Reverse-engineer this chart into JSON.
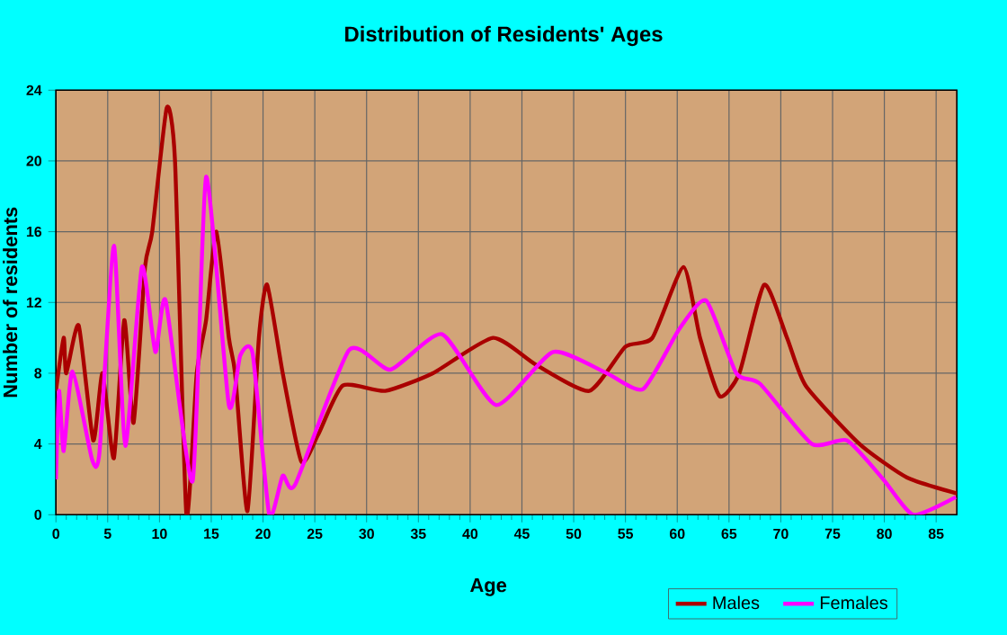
{
  "chart_data": {
    "type": "line",
    "title": "Distribution of Residents' Ages",
    "xlabel": "Age",
    "ylabel": "Number of residents",
    "xlim": [
      0,
      87
    ],
    "ylim": [
      0,
      24
    ],
    "xticks": [
      0,
      5,
      10,
      15,
      20,
      25,
      30,
      35,
      40,
      45,
      50,
      55,
      60,
      65,
      70,
      75,
      80,
      85
    ],
    "yticks": [
      0,
      4,
      8,
      12,
      16,
      20,
      24
    ],
    "grid": true,
    "legend": "bottom right",
    "marker": "none",
    "line_style": "solid",
    "series": [
      {
        "name": "Males",
        "color": "#aa0000",
        "x": [
          0,
          0.75,
          1.0,
          2.2,
          3.6,
          4.5,
          5.6,
          6.6,
          7.5,
          8.6,
          9.3,
          10.7,
          11.5,
          12.6,
          13.6,
          14.5,
          15.5,
          16.7,
          17.3,
          18.5,
          19.6,
          20.4,
          21.9,
          23.7,
          25.3,
          27.7,
          31.8,
          36.4,
          42.2,
          46.3,
          51.5,
          55,
          57.6,
          60.6,
          62.2,
          64.1,
          66,
          68.4,
          70.6,
          72.4,
          77.6,
          82.2,
          87
        ],
        "values": [
          7,
          10,
          8,
          10.7,
          4.2,
          8,
          3.2,
          11,
          5.2,
          14,
          16,
          23,
          20,
          0,
          8,
          11,
          16,
          10,
          8,
          0.2,
          10,
          13,
          8,
          3.0,
          4.5,
          7.3,
          7.0,
          8.0,
          10,
          8.5,
          7.0,
          9.5,
          10,
          14,
          10,
          6.7,
          8,
          13,
          10,
          7.3,
          4,
          2.1,
          1.2
        ]
      },
      {
        "name": "Females",
        "color": "#ff00ff",
        "x": [
          0,
          0.3,
          0.75,
          1.6,
          3.5,
          4.2,
          5.6,
          6.7,
          8.3,
          9.6,
          10.6,
          13.2,
          14.5,
          16.7,
          17.8,
          19,
          20.6,
          21.9,
          23.1,
          28.3,
          32.3,
          37.3,
          42.5,
          48,
          53.2,
          56.7,
          60.2,
          62.8,
          65.7,
          68,
          73,
          76.4,
          79.9,
          82.8,
          86.9
        ],
        "values": [
          2,
          7,
          3.6,
          8.1,
          3.1,
          3.5,
          15.2,
          3.9,
          14,
          9.2,
          12.1,
          1.9,
          19.1,
          6.2,
          9,
          9.1,
          0,
          2.2,
          1.7,
          9.3,
          8.2,
          10.2,
          6.2,
          9.2,
          8.0,
          7.1,
          10.5,
          12.1,
          8,
          7.4,
          4.0,
          4.2,
          2.0,
          0,
          1.0
        ]
      }
    ]
  }
}
